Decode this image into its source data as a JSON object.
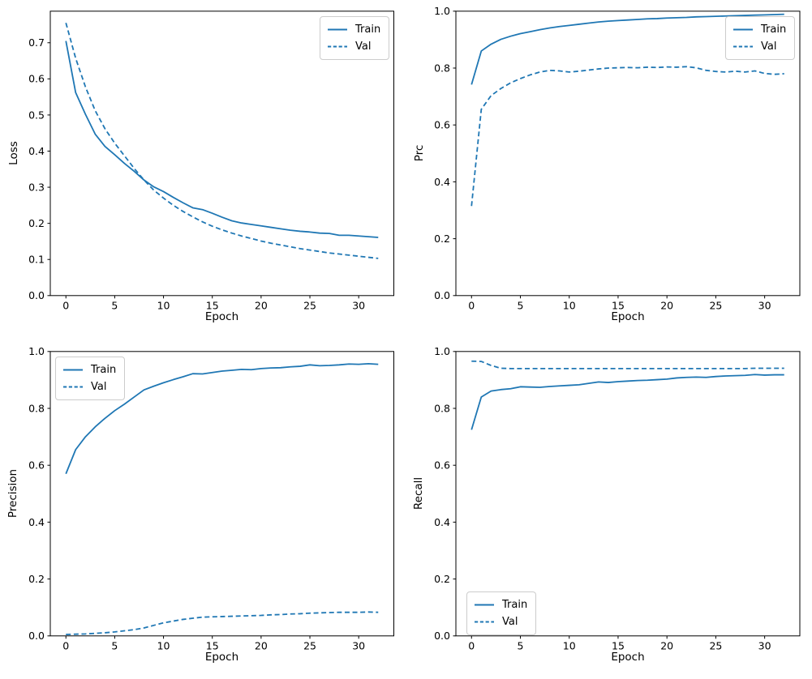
{
  "figure": {
    "background": "#ffffff",
    "line_color": "#1f77b4",
    "axis_color": "#000000",
    "legend_border_color": "#cccccc"
  },
  "chart_data": [
    {
      "id": "loss",
      "type": "line",
      "title": "",
      "xlabel": "Epoch",
      "ylabel": "Loss",
      "xlim": [
        -1.6,
        33.6
      ],
      "ylim": [
        0,
        0.7874
      ],
      "xticks": [
        0,
        5,
        10,
        15,
        20,
        25,
        30
      ],
      "xtick_labels": [
        "0",
        "5",
        "10",
        "15",
        "20",
        "25",
        "30"
      ],
      "yticks": [
        0.0,
        0.1,
        0.2,
        0.3,
        0.4,
        0.5,
        0.6,
        0.7
      ],
      "ytick_labels": [
        "0.0",
        "0.1",
        "0.2",
        "0.3",
        "0.4",
        "0.5",
        "0.6",
        "0.7"
      ],
      "grid": false,
      "legend": {
        "position": "top-right",
        "entries": [
          {
            "label": "Train",
            "style": "solid"
          },
          {
            "label": "Val",
            "style": "dashed"
          }
        ]
      },
      "x": [
        0,
        1,
        2,
        3,
        4,
        5,
        6,
        7,
        8,
        9,
        10,
        11,
        12,
        13,
        14,
        15,
        16,
        17,
        18,
        19,
        20,
        21,
        22,
        23,
        24,
        25,
        26,
        27,
        28,
        29,
        30,
        31,
        32
      ],
      "series": [
        {
          "name": "Train",
          "style": "solid",
          "values": [
            0.705,
            0.562,
            0.502,
            0.447,
            0.413,
            0.39,
            0.366,
            0.344,
            0.32,
            0.301,
            0.288,
            0.272,
            0.257,
            0.243,
            0.238,
            0.228,
            0.217,
            0.207,
            0.201,
            0.197,
            0.193,
            0.189,
            0.185,
            0.181,
            0.178,
            0.176,
            0.173,
            0.172,
            0.167,
            0.167,
            0.165,
            0.163,
            0.161
          ]
        },
        {
          "name": "Val",
          "style": "dashed",
          "values": [
            0.755,
            0.657,
            0.578,
            0.512,
            0.462,
            0.422,
            0.387,
            0.352,
            0.32,
            0.292,
            0.27,
            0.25,
            0.233,
            0.218,
            0.204,
            0.192,
            0.182,
            0.173,
            0.165,
            0.158,
            0.151,
            0.145,
            0.14,
            0.135,
            0.13,
            0.126,
            0.122,
            0.118,
            0.115,
            0.112,
            0.109,
            0.106,
            0.103
          ]
        }
      ]
    },
    {
      "id": "prc",
      "type": "line",
      "title": "",
      "xlabel": "Epoch",
      "ylabel": "Prc",
      "xlim": [
        -1.6,
        33.6
      ],
      "ylim": [
        0,
        1.0
      ],
      "xticks": [
        0,
        5,
        10,
        15,
        20,
        25,
        30
      ],
      "xtick_labels": [
        "0",
        "5",
        "10",
        "15",
        "20",
        "25",
        "30"
      ],
      "yticks": [
        0.0,
        0.2,
        0.4,
        0.6,
        0.8,
        1.0
      ],
      "ytick_labels": [
        "0.0",
        "0.2",
        "0.4",
        "0.6",
        "0.8",
        "1.0"
      ],
      "grid": false,
      "legend": {
        "position": "top-right",
        "entries": [
          {
            "label": "Train",
            "style": "solid"
          },
          {
            "label": "Val",
            "style": "dashed"
          }
        ]
      },
      "x": [
        0,
        1,
        2,
        3,
        4,
        5,
        6,
        7,
        8,
        9,
        10,
        11,
        12,
        13,
        14,
        15,
        16,
        17,
        18,
        19,
        20,
        21,
        22,
        23,
        24,
        25,
        26,
        27,
        28,
        29,
        30,
        31,
        32
      ],
      "series": [
        {
          "name": "Train",
          "style": "solid",
          "values": [
            0.742,
            0.86,
            0.884,
            0.901,
            0.912,
            0.921,
            0.928,
            0.935,
            0.941,
            0.946,
            0.95,
            0.954,
            0.958,
            0.962,
            0.965,
            0.967,
            0.969,
            0.971,
            0.973,
            0.974,
            0.976,
            0.977,
            0.978,
            0.98,
            0.981,
            0.982,
            0.983,
            0.984,
            0.985,
            0.986,
            0.987,
            0.988,
            0.989
          ]
        },
        {
          "name": "Val",
          "style": "dashed",
          "values": [
            0.315,
            0.655,
            0.703,
            0.728,
            0.748,
            0.763,
            0.776,
            0.786,
            0.792,
            0.79,
            0.786,
            0.789,
            0.793,
            0.797,
            0.8,
            0.801,
            0.802,
            0.801,
            0.803,
            0.802,
            0.804,
            0.803,
            0.805,
            0.801,
            0.792,
            0.788,
            0.786,
            0.789,
            0.786,
            0.79,
            0.781,
            0.778,
            0.78
          ]
        }
      ]
    },
    {
      "id": "precision",
      "type": "line",
      "title": "",
      "xlabel": "Epoch",
      "ylabel": "Precision",
      "xlim": [
        -1.6,
        33.6
      ],
      "ylim": [
        0,
        1.0
      ],
      "xticks": [
        0,
        5,
        10,
        15,
        20,
        25,
        30
      ],
      "xtick_labels": [
        "0",
        "5",
        "10",
        "15",
        "20",
        "25",
        "30"
      ],
      "yticks": [
        0.0,
        0.2,
        0.4,
        0.6,
        0.8,
        1.0
      ],
      "ytick_labels": [
        "0.0",
        "0.2",
        "0.4",
        "0.6",
        "0.8",
        "1.0"
      ],
      "grid": false,
      "legend": {
        "position": "top-left",
        "entries": [
          {
            "label": "Train",
            "style": "solid"
          },
          {
            "label": "Val",
            "style": "dashed"
          }
        ]
      },
      "x": [
        0,
        1,
        2,
        3,
        4,
        5,
        6,
        7,
        8,
        9,
        10,
        11,
        12,
        13,
        14,
        15,
        16,
        17,
        18,
        19,
        20,
        21,
        22,
        23,
        24,
        25,
        26,
        27,
        28,
        29,
        30,
        31,
        32
      ],
      "series": [
        {
          "name": "Train",
          "style": "solid",
          "values": [
            0.57,
            0.655,
            0.7,
            0.735,
            0.765,
            0.792,
            0.815,
            0.84,
            0.865,
            0.878,
            0.89,
            0.901,
            0.911,
            0.922,
            0.921,
            0.926,
            0.931,
            0.934,
            0.937,
            0.936,
            0.94,
            0.942,
            0.943,
            0.946,
            0.948,
            0.953,
            0.95,
            0.951,
            0.953,
            0.956,
            0.955,
            0.957,
            0.955
          ]
        },
        {
          "name": "Val",
          "style": "dashed",
          "values": [
            0.005,
            0.006,
            0.007,
            0.009,
            0.011,
            0.014,
            0.018,
            0.022,
            0.028,
            0.037,
            0.046,
            0.052,
            0.058,
            0.062,
            0.066,
            0.067,
            0.068,
            0.069,
            0.07,
            0.071,
            0.072,
            0.074,
            0.075,
            0.077,
            0.078,
            0.08,
            0.081,
            0.082,
            0.083,
            0.083,
            0.083,
            0.084,
            0.083
          ]
        }
      ]
    },
    {
      "id": "recall",
      "type": "line",
      "title": "",
      "xlabel": "Epoch",
      "ylabel": "Recall",
      "xlim": [
        -1.6,
        33.6
      ],
      "ylim": [
        0,
        1.0
      ],
      "xticks": [
        0,
        5,
        10,
        15,
        20,
        25,
        30
      ],
      "xtick_labels": [
        "0",
        "5",
        "10",
        "15",
        "20",
        "25",
        "30"
      ],
      "yticks": [
        0.0,
        0.2,
        0.4,
        0.6,
        0.8,
        1.0
      ],
      "ytick_labels": [
        "0.0",
        "0.2",
        "0.4",
        "0.6",
        "0.8",
        "1.0"
      ],
      "grid": false,
      "legend": {
        "position": "bottom-left",
        "entries": [
          {
            "label": "Train",
            "style": "solid"
          },
          {
            "label": "Val",
            "style": "dashed"
          }
        ]
      },
      "x": [
        0,
        1,
        2,
        3,
        4,
        5,
        6,
        7,
        8,
        9,
        10,
        11,
        12,
        13,
        14,
        15,
        16,
        17,
        18,
        19,
        20,
        21,
        22,
        23,
        24,
        25,
        26,
        27,
        28,
        29,
        30,
        31,
        32
      ],
      "series": [
        {
          "name": "Train",
          "style": "solid",
          "values": [
            0.725,
            0.84,
            0.861,
            0.866,
            0.869,
            0.876,
            0.875,
            0.874,
            0.877,
            0.879,
            0.881,
            0.883,
            0.888,
            0.893,
            0.891,
            0.894,
            0.896,
            0.898,
            0.899,
            0.901,
            0.903,
            0.907,
            0.909,
            0.91,
            0.909,
            0.912,
            0.914,
            0.915,
            0.916,
            0.919,
            0.917,
            0.918,
            0.918
          ]
        },
        {
          "name": "Val",
          "style": "dashed",
          "values": [
            0.966,
            0.965,
            0.951,
            0.941,
            0.94,
            0.94,
            0.94,
            0.94,
            0.94,
            0.94,
            0.94,
            0.94,
            0.94,
            0.94,
            0.94,
            0.94,
            0.94,
            0.94,
            0.94,
            0.94,
            0.94,
            0.94,
            0.94,
            0.94,
            0.94,
            0.94,
            0.94,
            0.94,
            0.94,
            0.941,
            0.941,
            0.941,
            0.941
          ]
        }
      ]
    }
  ]
}
